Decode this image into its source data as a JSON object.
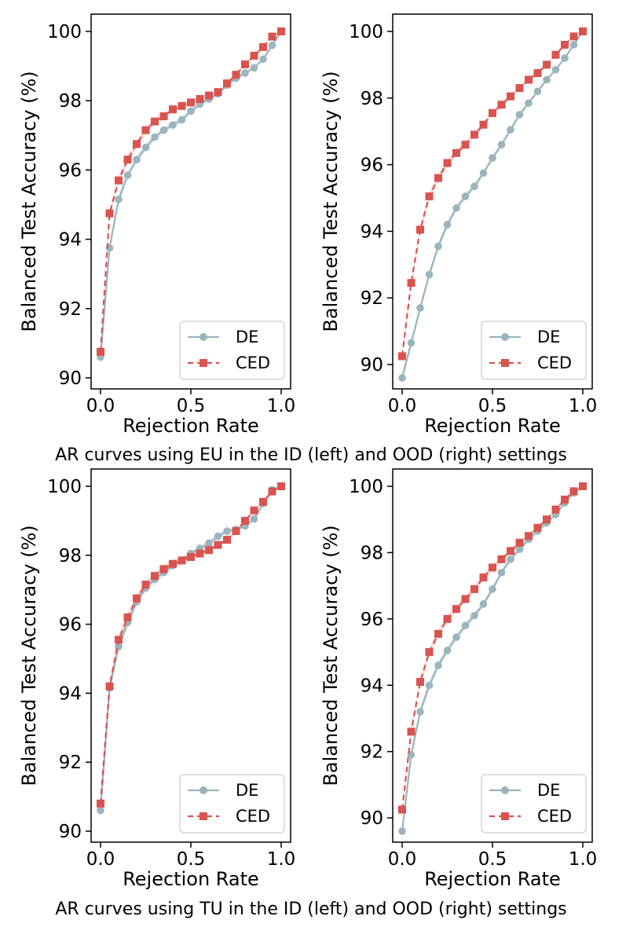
{
  "captions": [
    "AR curves using EU in the ID (left) and OOD (right) settings",
    "AR curves using TU in the ID (left) and OOD (right) settings"
  ],
  "colors": {
    "DE": "#9bb4bd",
    "CED": "#d9534f"
  },
  "chart_data": [
    {
      "type": "line",
      "xlabel": "Rejection Rate",
      "ylabel": "Balanced Test Accuracy (%)",
      "xlim": [
        0,
        1
      ],
      "ylim": [
        90,
        100
      ],
      "xticks": [
        "0.0",
        "0.5",
        "1.0"
      ],
      "yticks": [
        "90",
        "92",
        "94",
        "96",
        "98",
        "100"
      ],
      "legend_position": "lower-right",
      "x": [
        0,
        0.05,
        0.1,
        0.15,
        0.2,
        0.25,
        0.3,
        0.35,
        0.4,
        0.45,
        0.5,
        0.55,
        0.6,
        0.65,
        0.7,
        0.75,
        0.8,
        0.85,
        0.9,
        0.95,
        1.0
      ],
      "series": [
        {
          "name": "DE",
          "values": [
            90.6,
            93.75,
            95.15,
            95.85,
            96.3,
            96.65,
            96.95,
            97.15,
            97.3,
            97.45,
            97.7,
            97.9,
            98.05,
            98.2,
            98.45,
            98.65,
            98.8,
            98.95,
            99.2,
            99.6,
            100.0
          ]
        },
        {
          "name": "CED",
          "values": [
            90.75,
            94.75,
            95.7,
            96.3,
            96.75,
            97.15,
            97.4,
            97.55,
            97.75,
            97.85,
            97.95,
            98.05,
            98.15,
            98.25,
            98.5,
            98.75,
            99.05,
            99.3,
            99.55,
            99.85,
            100.0
          ]
        }
      ]
    },
    {
      "type": "line",
      "xlabel": "Rejection Rate",
      "ylabel": "Balanced Test Accuracy (%)",
      "xlim": [
        0,
        1
      ],
      "ylim": [
        89.5,
        100
      ],
      "xticks": [
        "0.0",
        "0.5",
        "1.0"
      ],
      "yticks": [
        "90",
        "92",
        "94",
        "96",
        "98",
        "100"
      ],
      "legend_position": "lower-right",
      "x": [
        0,
        0.05,
        0.1,
        0.15,
        0.2,
        0.25,
        0.3,
        0.35,
        0.4,
        0.45,
        0.5,
        0.55,
        0.6,
        0.65,
        0.7,
        0.75,
        0.8,
        0.85,
        0.9,
        0.95,
        1.0
      ],
      "series": [
        {
          "name": "DE",
          "values": [
            89.6,
            90.65,
            91.7,
            92.7,
            93.55,
            94.2,
            94.7,
            95.05,
            95.35,
            95.75,
            96.2,
            96.6,
            97.05,
            97.5,
            97.85,
            98.2,
            98.55,
            98.85,
            99.2,
            99.6,
            100.0
          ]
        },
        {
          "name": "CED",
          "values": [
            90.25,
            92.45,
            94.05,
            95.05,
            95.6,
            96.05,
            96.35,
            96.6,
            96.9,
            97.2,
            97.55,
            97.8,
            98.05,
            98.3,
            98.55,
            98.75,
            99.0,
            99.3,
            99.6,
            99.85,
            100.0
          ]
        }
      ]
    },
    {
      "type": "line",
      "xlabel": "Rejection Rate",
      "ylabel": "Balanced Test Accuracy (%)",
      "xlim": [
        0,
        1
      ],
      "ylim": [
        90,
        100
      ],
      "xticks": [
        "0.0",
        "0.5",
        "1.0"
      ],
      "yticks": [
        "90",
        "92",
        "94",
        "96",
        "98",
        "100"
      ],
      "legend_position": "lower-right",
      "x": [
        0,
        0.05,
        0.1,
        0.15,
        0.2,
        0.25,
        0.3,
        0.35,
        0.4,
        0.45,
        0.5,
        0.55,
        0.6,
        0.65,
        0.7,
        0.75,
        0.8,
        0.85,
        0.9,
        0.95,
        1.0
      ],
      "series": [
        {
          "name": "DE",
          "values": [
            90.6,
            94.15,
            95.35,
            96.05,
            96.65,
            97.05,
            97.3,
            97.5,
            97.7,
            97.85,
            98.05,
            98.2,
            98.35,
            98.55,
            98.7,
            98.75,
            98.85,
            99.05,
            99.5,
            99.9,
            100.0
          ]
        },
        {
          "name": "CED",
          "values": [
            90.8,
            94.2,
            95.55,
            96.2,
            96.75,
            97.15,
            97.4,
            97.6,
            97.75,
            97.85,
            97.95,
            98.05,
            98.15,
            98.3,
            98.45,
            98.7,
            99.0,
            99.3,
            99.55,
            99.85,
            100.0
          ]
        }
      ]
    },
    {
      "type": "line",
      "xlabel": "Rejection Rate",
      "ylabel": "Balanced Test Accuracy (%)",
      "xlim": [
        0,
        1
      ],
      "ylim": [
        89.5,
        100
      ],
      "xticks": [
        "0.0",
        "0.5",
        "1.0"
      ],
      "yticks": [
        "90",
        "92",
        "94",
        "96",
        "98",
        "100"
      ],
      "legend_position": "lower-right",
      "x": [
        0,
        0.05,
        0.1,
        0.15,
        0.2,
        0.25,
        0.3,
        0.35,
        0.4,
        0.45,
        0.5,
        0.55,
        0.6,
        0.65,
        0.7,
        0.75,
        0.8,
        0.85,
        0.9,
        0.95,
        1.0
      ],
      "series": [
        {
          "name": "DE",
          "values": [
            89.6,
            91.9,
            93.2,
            94.0,
            94.6,
            95.05,
            95.45,
            95.8,
            96.1,
            96.45,
            96.9,
            97.4,
            97.8,
            98.1,
            98.4,
            98.65,
            98.9,
            99.15,
            99.5,
            99.8,
            100.0
          ]
        },
        {
          "name": "CED",
          "values": [
            90.25,
            92.6,
            94.1,
            95.0,
            95.55,
            96.0,
            96.3,
            96.6,
            96.9,
            97.25,
            97.55,
            97.8,
            98.05,
            98.3,
            98.5,
            98.75,
            99.0,
            99.3,
            99.6,
            99.85,
            100.0
          ]
        }
      ]
    }
  ]
}
